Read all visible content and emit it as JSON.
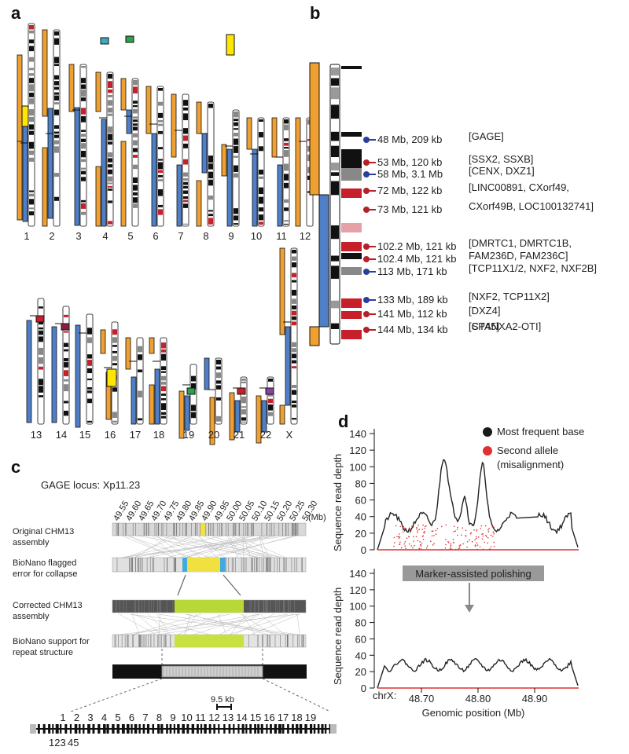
{
  "panel_labels": [
    "a",
    "b",
    "c",
    "d"
  ],
  "panel_a": {
    "row1_chromosomes": [
      "1",
      "2",
      "3",
      "4",
      "5",
      "6",
      "7",
      "8",
      "9",
      "10",
      "11",
      "12"
    ],
    "row2_chromosomes": [
      "13",
      "14",
      "15",
      "16",
      "17",
      "18",
      "19",
      "20",
      "21",
      "22",
      "X"
    ]
  },
  "panel_b": {
    "annotations": [
      {
        "label": "48 Mb, 209 kb",
        "color": "#2a3f9b",
        "genes": "[GAGE]"
      },
      {
        "label": "53 Mb, 120 kb",
        "color": "#b5202a",
        "genes": "[SSX2, SSXB]"
      },
      {
        "label": "58 Mb, 3.1 Mb",
        "color": "#2a3f9b",
        "genes": "[CENX, DXZ1]"
      },
      {
        "label": "72 Mb, 122 kb",
        "color": "#b5202a",
        "genes": "[LINC00891, CXorf49,"
      },
      {
        "label": "73 Mb, 121 kb",
        "color": "#b5202a",
        "genes": "CXorf49B, LOC100132741]"
      },
      {
        "label": "102.2 Mb, 121 kb",
        "color": "#b5202a",
        "genes": "[DMRTC1, DMRTC1B,"
      },
      {
        "label": "102.4 Mb, 121 kb",
        "color": "#b5202a",
        "genes": "FAM236D, FAM236C]"
      },
      {
        "label": "113 Mb, 171 kb",
        "color": "#2a3f9b",
        "genes": "[TCP11X1/2, NXF2, NXF2B]"
      },
      {
        "label": "133 Mb, 189 kb",
        "color": "#2a3f9b",
        "genes": "[NXF2, TCP11X2]"
      },
      {
        "label": "141 Mb, 112 kb",
        "color": "#b5202a",
        "genes": "[DXZ4]"
      },
      {
        "label": "144 Mb, 134 kb",
        "color": "#b5202a",
        "genes": "[CT45]"
      }
    ],
    "extra_gene": "[SPANXA2-OTI]"
  },
  "panel_c": {
    "title": "GAGE locus: Xp11.23",
    "ticks": [
      "49.55",
      "49.60",
      "49.65",
      "49.70",
      "49.75",
      "49.80",
      "49.85",
      "49.90",
      "49.95",
      "50.00",
      "50.05",
      "50.10",
      "50.15",
      "50.20",
      "50.25",
      "50.30"
    ],
    "unit": "(Mb)",
    "track1": [
      "Original CHM13",
      "assembly"
    ],
    "track2": [
      "BioNano flagged",
      "error for collapse"
    ],
    "track3": [
      "Corrected CHM13",
      "assembly"
    ],
    "track4": [
      "BioNano support for",
      "repeat structure"
    ],
    "scale": "9.5 kb",
    "repeat_numbers": [
      "1",
      "2",
      "3",
      "4",
      "5",
      "6",
      "7",
      "8",
      "9",
      "10",
      "11",
      "12",
      "13",
      "14",
      "15",
      "16",
      "17",
      "18",
      "19"
    ],
    "repeat_numbers_low": [
      "123",
      "45"
    ]
  },
  "panel_d": {
    "ylabel": "Sequence read depth",
    "yticks": [
      "0",
      "20",
      "40",
      "60",
      "80",
      "100",
      "120",
      "140"
    ],
    "legend": [
      "Most frequent base",
      "Second allele",
      "(misalignment)"
    ],
    "arrow_label": "Marker-assisted polishing",
    "xprefix": "chrX:",
    "xticks": [
      "48.70",
      "48.80",
      "48.90"
    ],
    "xlabel": "Genomic position (Mb)",
    "colors": {
      "primary": "#1a1a1a",
      "secondary": "#e03030"
    }
  }
}
